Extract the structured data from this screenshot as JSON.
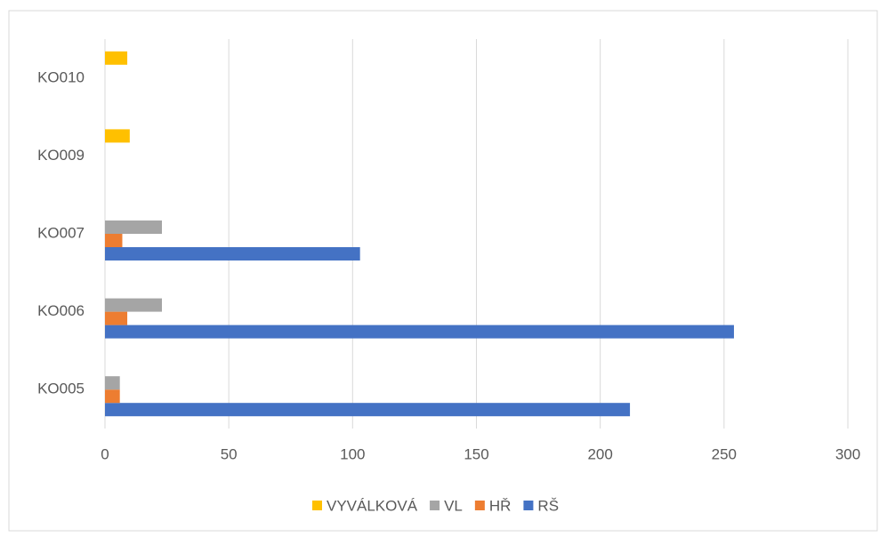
{
  "chart_data": {
    "type": "bar",
    "orientation": "horizontal",
    "categories": [
      "KO005",
      "KO006",
      "KO007",
      "KO009",
      "KO010"
    ],
    "series": [
      {
        "name": "RŠ",
        "color": "#4472c4",
        "values": [
          212,
          254,
          103,
          null,
          null
        ]
      },
      {
        "name": "HŘ",
        "color": "#ed7d31",
        "values": [
          6,
          9,
          7,
          null,
          null
        ]
      },
      {
        "name": "VL",
        "color": "#a5a5a5",
        "values": [
          6,
          23,
          23,
          null,
          null
        ]
      },
      {
        "name": "VYVÁLKOVÁ",
        "color": "#ffc000",
        "values": [
          null,
          null,
          null,
          10,
          9
        ]
      }
    ],
    "xlim": [
      0,
      300
    ],
    "xticks": [
      0,
      50,
      100,
      150,
      200,
      250,
      300
    ],
    "grid": true,
    "legend": "bottom"
  }
}
